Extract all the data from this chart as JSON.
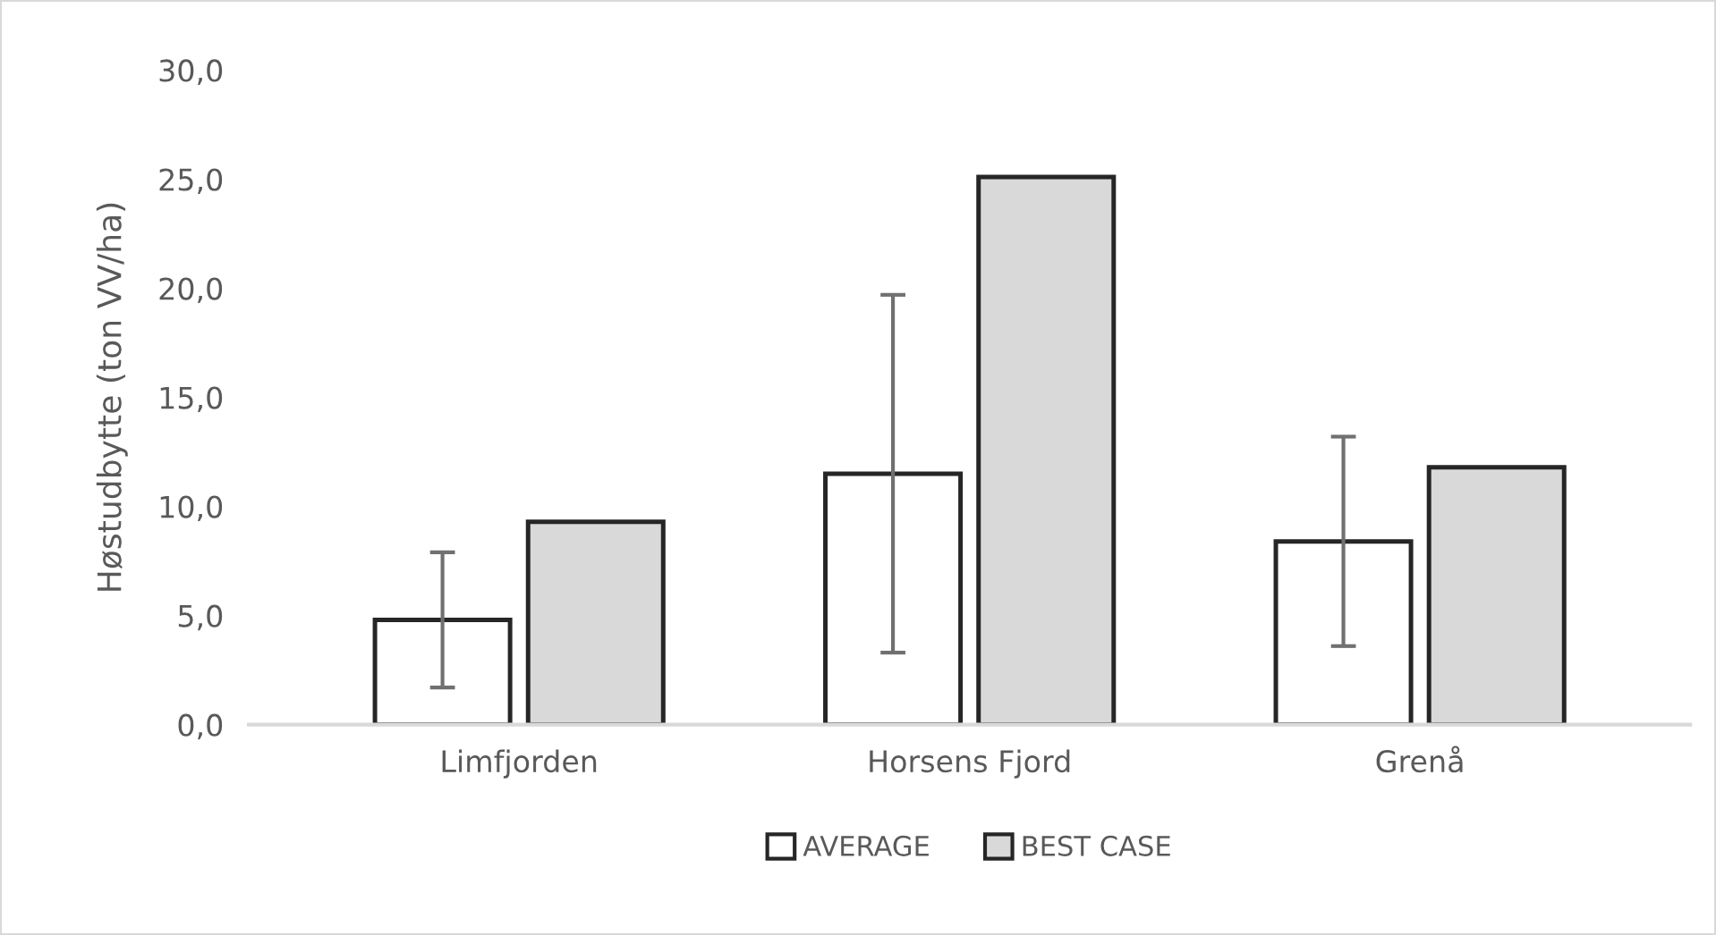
{
  "chart_data": {
    "type": "bar",
    "ylabel": "Høstudbytte (ton VV/ha)",
    "categories": [
      "Limfjorden",
      "Horsens Fjord",
      "Grenå"
    ],
    "series": [
      {
        "name": "AVERAGE",
        "color": "#ffffff",
        "values": [
          4.8,
          11.5,
          8.4
        ],
        "errors": [
          3.1,
          8.2,
          4.8
        ]
      },
      {
        "name": "BEST CASE",
        "color": "#d9d9d9",
        "values": [
          9.3,
          25.1,
          11.8
        ]
      }
    ],
    "ylim": [
      0,
      30
    ],
    "yticks": [
      {
        "value": 0,
        "label": "0,0"
      },
      {
        "value": 5,
        "label": "5,0"
      },
      {
        "value": 10,
        "label": "10,0"
      },
      {
        "value": 15,
        "label": "15,0"
      },
      {
        "value": 20,
        "label": "20,0"
      },
      {
        "value": 25,
        "label": "25,0"
      },
      {
        "value": 30,
        "label": "30,0"
      }
    ],
    "grid": false,
    "legend": "bottom"
  }
}
